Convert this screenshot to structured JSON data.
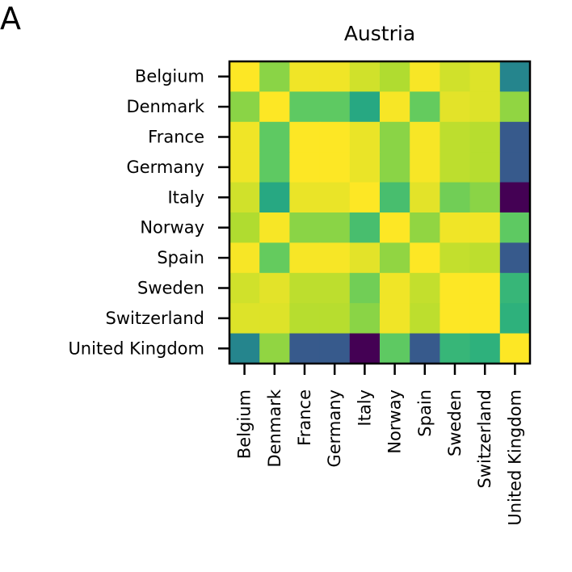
{
  "panel_label": "A",
  "chart_data": {
    "type": "heatmap",
    "title": "Austria",
    "xlabel": "",
    "ylabel": "",
    "colormap": "viridis",
    "x_categories": [
      "Belgium",
      "Denmark",
      "France",
      "Germany",
      "Italy",
      "Norway",
      "Spain",
      "Sweden",
      "Switzerland",
      "United Kingdom"
    ],
    "y_categories": [
      "Belgium",
      "Denmark",
      "France",
      "Germany",
      "Italy",
      "Norway",
      "Spain",
      "Sweden",
      "Switzerland",
      "United Kingdom"
    ],
    "vrange": [
      0,
      1
    ],
    "values": [
      [
        1.0,
        0.82,
        0.98,
        0.98,
        0.93,
        0.88,
        0.99,
        0.93,
        0.95,
        0.45
      ],
      [
        0.82,
        1.0,
        0.75,
        0.75,
        0.6,
        0.99,
        0.76,
        0.96,
        0.95,
        0.83
      ],
      [
        0.98,
        0.75,
        1.0,
        1.0,
        0.97,
        0.82,
        0.99,
        0.9,
        0.89,
        0.28
      ],
      [
        0.98,
        0.75,
        1.0,
        1.0,
        0.97,
        0.82,
        0.99,
        0.9,
        0.89,
        0.28
      ],
      [
        0.93,
        0.6,
        0.97,
        0.97,
        1.0,
        0.7,
        0.96,
        0.78,
        0.82,
        0.0
      ],
      [
        0.88,
        0.99,
        0.82,
        0.82,
        0.7,
        1.0,
        0.83,
        0.98,
        0.98,
        0.75
      ],
      [
        0.99,
        0.76,
        0.99,
        0.99,
        0.96,
        0.83,
        1.0,
        0.91,
        0.9,
        0.28
      ],
      [
        0.93,
        0.96,
        0.9,
        0.9,
        0.78,
        0.98,
        0.91,
        1.0,
        1.0,
        0.66
      ],
      [
        0.95,
        0.95,
        0.89,
        0.89,
        0.82,
        0.98,
        0.9,
        1.0,
        1.0,
        0.64
      ],
      [
        0.45,
        0.83,
        0.28,
        0.28,
        0.0,
        0.75,
        0.28,
        0.66,
        0.64,
        1.0
      ]
    ]
  }
}
